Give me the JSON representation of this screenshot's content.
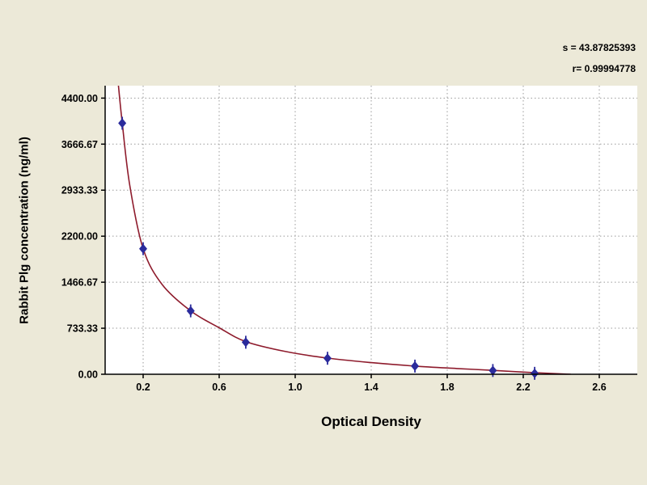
{
  "window": {
    "background": "#ece9d8"
  },
  "stats": {
    "s_line": "s = 43.87825393",
    "r_line": "r= 0.99994778"
  },
  "chart_data": {
    "type": "scatter",
    "title": "",
    "xlabel": "Optical Density",
    "ylabel": "Rabbit Plg concentration (ng/ml)",
    "xlim": [
      0,
      2.8
    ],
    "ylim": [
      0,
      4400
    ],
    "grid": true,
    "legend": "none",
    "x_ticks": [
      {
        "value": 0.2,
        "label": "0.2"
      },
      {
        "value": 0.6,
        "label": "0.6"
      },
      {
        "value": 1.0,
        "label": "1.0"
      },
      {
        "value": 1.4,
        "label": "1.4"
      },
      {
        "value": 1.8,
        "label": "1.8"
      },
      {
        "value": 2.2,
        "label": "2.2"
      },
      {
        "value": 2.6,
        "label": "2.6"
      }
    ],
    "y_ticks": [
      {
        "value": 0,
        "label": "0.00"
      },
      {
        "value": 733.33,
        "label": "733.33"
      },
      {
        "value": 1466.67,
        "label": "1466.67"
      },
      {
        "value": 2200,
        "label": "2200.00"
      },
      {
        "value": 2933.33,
        "label": "2933.33"
      },
      {
        "value": 3666.67,
        "label": "3666.67"
      },
      {
        "value": 4400,
        "label": "4400.00"
      }
    ],
    "series": [
      {
        "name": "standard-points",
        "type": "scatter",
        "marker": "diamond",
        "color": "#2b2b9c",
        "x": [
          0.09,
          0.2,
          0.45,
          0.74,
          1.17,
          1.63,
          2.04,
          2.26
        ],
        "y": [
          4000,
          2000,
          1010,
          510,
          255,
          130,
          60,
          15
        ]
      },
      {
        "name": "fit-curve",
        "type": "line",
        "color": "#8e1b2c",
        "x": [
          0.07,
          0.09,
          0.13,
          0.2,
          0.3,
          0.45,
          0.6,
          0.74,
          0.95,
          1.17,
          1.4,
          1.63,
          1.85,
          2.04,
          2.26,
          2.45
        ],
        "y": [
          4600,
          4000,
          3000,
          2000,
          1430,
          1010,
          740,
          520,
          362,
          258,
          186,
          130,
          92,
          62,
          24,
          0
        ]
      }
    ],
    "colors": {
      "plot_bg": "#ffffff",
      "grid": "#9a9a9a",
      "axis": "#000000",
      "text": "#000000"
    }
  }
}
